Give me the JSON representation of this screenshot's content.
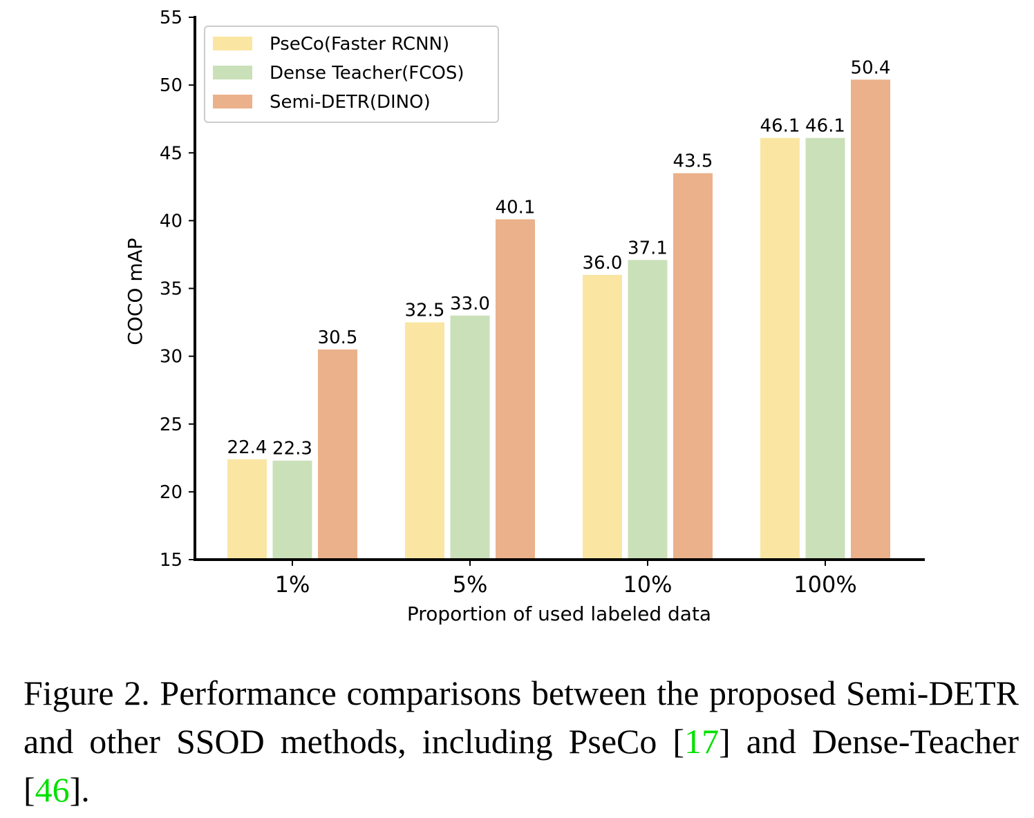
{
  "chart_data": {
    "type": "bar",
    "title": "",
    "xlabel": "Proportion of used labeled data",
    "ylabel": "COCO mAP",
    "ylim": [
      15,
      55
    ],
    "yticks": [
      15,
      20,
      25,
      30,
      35,
      40,
      45,
      50,
      55
    ],
    "categories": [
      "1%",
      "5%",
      "10%",
      "100%"
    ],
    "series": [
      {
        "name": "PseCo(Faster RCNN)",
        "values": [
          22.4,
          32.5,
          36.0,
          46.1
        ],
        "labels": [
          "22.4",
          "32.5",
          "36.0",
          "46.1"
        ],
        "color": "#fae6a2"
      },
      {
        "name": "Dense Teacher(FCOS)",
        "values": [
          22.3,
          33.0,
          37.1,
          46.1
        ],
        "labels": [
          "22.3",
          "33.0",
          "37.1",
          "46.1"
        ],
        "color": "#cae0b9"
      },
      {
        "name": "Semi-DETR(DINO)",
        "values": [
          30.5,
          40.1,
          43.5,
          50.4
        ],
        "labels": [
          "30.5",
          "40.1",
          "43.5",
          "50.4"
        ],
        "color": "#ebb18b"
      }
    ],
    "legend": "top-left",
    "grid": false
  },
  "caption": {
    "text_before_ref1": "Figure 2.  Performance comparisons between the proposed Semi-DETR and other SSOD methods, including PseCo [",
    "ref1": "17",
    "text_between": "] and Dense-Teacher [",
    "ref2": "46",
    "text_after": "]."
  }
}
